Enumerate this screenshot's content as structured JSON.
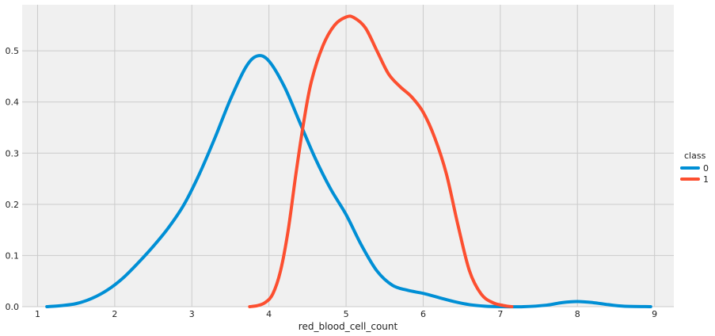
{
  "chart_data": {
    "type": "line",
    "title": "",
    "xlabel": "red_blood_cell_count",
    "ylabel": "",
    "xlim": [
      0.8,
      9.25
    ],
    "ylim": [
      0,
      0.59
    ],
    "x_ticks": [
      1,
      2,
      3,
      4,
      5,
      6,
      7,
      8,
      9
    ],
    "y_ticks": [
      0.0,
      0.1,
      0.2,
      0.3,
      0.4,
      0.5
    ],
    "y_tick_labels": [
      "0.0",
      "0.1",
      "0.2",
      "0.3",
      "0.4",
      "0.5"
    ],
    "grid": true,
    "background": "#f0f0f0",
    "legend": {
      "title": "class",
      "placement": "right"
    },
    "series": [
      {
        "name": "0",
        "color": "#008fd5",
        "points": [
          [
            1.12,
            0.0
          ],
          [
            1.3,
            0.002
          ],
          [
            1.5,
            0.006
          ],
          [
            1.7,
            0.016
          ],
          [
            1.9,
            0.032
          ],
          [
            2.1,
            0.055
          ],
          [
            2.3,
            0.085
          ],
          [
            2.5,
            0.118
          ],
          [
            2.7,
            0.155
          ],
          [
            2.9,
            0.2
          ],
          [
            3.1,
            0.26
          ],
          [
            3.3,
            0.33
          ],
          [
            3.5,
            0.405
          ],
          [
            3.7,
            0.468
          ],
          [
            3.85,
            0.49
          ],
          [
            4.0,
            0.48
          ],
          [
            4.2,
            0.43
          ],
          [
            4.4,
            0.36
          ],
          [
            4.6,
            0.29
          ],
          [
            4.8,
            0.23
          ],
          [
            5.0,
            0.18
          ],
          [
            5.2,
            0.12
          ],
          [
            5.4,
            0.07
          ],
          [
            5.6,
            0.042
          ],
          [
            5.8,
            0.032
          ],
          [
            6.0,
            0.026
          ],
          [
            6.2,
            0.018
          ],
          [
            6.4,
            0.01
          ],
          [
            6.6,
            0.004
          ],
          [
            6.8,
            0.001
          ],
          [
            7.0,
            0.0
          ],
          [
            7.3,
            0.0
          ],
          [
            7.6,
            0.003
          ],
          [
            7.8,
            0.008
          ],
          [
            8.0,
            0.01
          ],
          [
            8.2,
            0.008
          ],
          [
            8.4,
            0.004
          ],
          [
            8.6,
            0.001
          ],
          [
            8.95,
            0.0
          ]
        ]
      },
      {
        "name": "1",
        "color": "#fc4f30",
        "points": [
          [
            3.75,
            0.0
          ],
          [
            3.85,
            0.002
          ],
          [
            3.95,
            0.008
          ],
          [
            4.05,
            0.025
          ],
          [
            4.15,
            0.07
          ],
          [
            4.25,
            0.15
          ],
          [
            4.35,
            0.26
          ],
          [
            4.45,
            0.36
          ],
          [
            4.55,
            0.44
          ],
          [
            4.7,
            0.51
          ],
          [
            4.85,
            0.55
          ],
          [
            5.0,
            0.566
          ],
          [
            5.1,
            0.565
          ],
          [
            5.25,
            0.545
          ],
          [
            5.4,
            0.5
          ],
          [
            5.55,
            0.455
          ],
          [
            5.7,
            0.43
          ],
          [
            5.85,
            0.41
          ],
          [
            6.0,
            0.38
          ],
          [
            6.15,
            0.33
          ],
          [
            6.3,
            0.26
          ],
          [
            6.45,
            0.16
          ],
          [
            6.6,
            0.07
          ],
          [
            6.75,
            0.025
          ],
          [
            6.9,
            0.008
          ],
          [
            7.05,
            0.002
          ],
          [
            7.15,
            0.0
          ]
        ]
      }
    ]
  }
}
